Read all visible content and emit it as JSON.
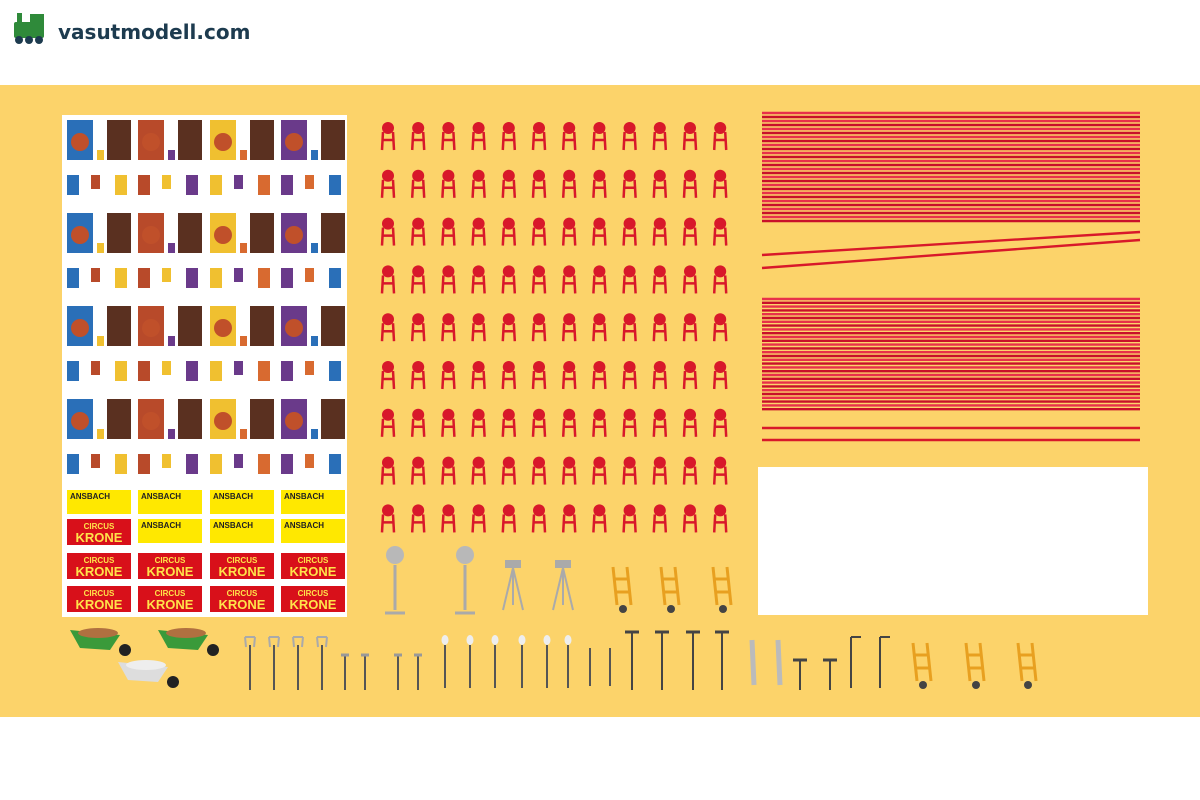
{
  "header": {
    "site": "vasutmodell.com"
  },
  "poster_sheet": {
    "banner_top": "CIRCUS",
    "banner_bottom": "KRONE",
    "town": "ANSBACH"
  }
}
